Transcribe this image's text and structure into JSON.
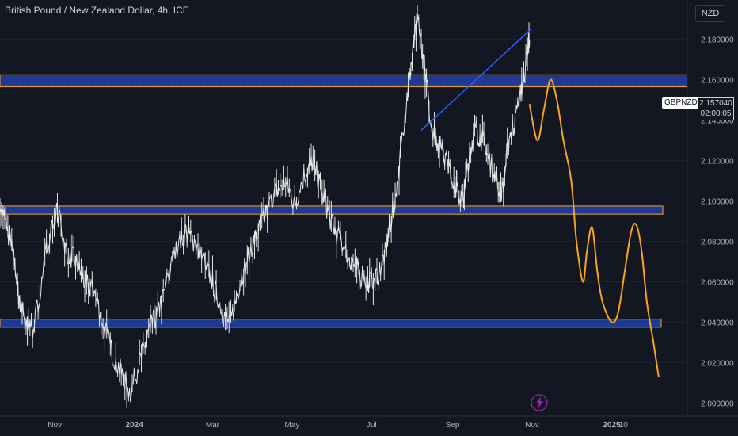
{
  "header": {
    "title": "British Pound / New Zealand Dollar, 4h, ICE"
  },
  "toolbar": {
    "currency_label": "NZD"
  },
  "last_price": {
    "symbol": "GBPNZD",
    "price": "2.157040",
    "countdown": "02:00:05"
  },
  "icons": {
    "event_marker": "lightning-icon"
  },
  "colors": {
    "background": "#131722",
    "grid": "#1e222d",
    "candles": "#e6e6e6",
    "zone_fill": "#1f3a93",
    "zone_border": "#f5a623",
    "projection": "#f7a51e",
    "trendline": "#2962ff",
    "axis_text": "#b2b5be",
    "event_marker": "#9c27b0"
  },
  "chart_data": {
    "type": "line",
    "symbol": "GBPNZD",
    "timeframe": "4h",
    "ylim": [
      1.9935,
      2.1995
    ],
    "y_ticks": [
      "2.000000",
      "2.020000",
      "2.040000",
      "2.060000",
      "2.080000",
      "2.100000",
      "2.120000",
      "2.140000",
      "2.160000",
      "2.180000"
    ],
    "x_ticks": [
      "Nov",
      "2024",
      "Mar",
      "May",
      "Jul",
      "Sep",
      "Nov",
      "2025",
      "10"
    ],
    "series": [
      {
        "role": "price",
        "x": [
          "2023-09-20",
          "2023-09-26",
          "2023-10-01",
          "2023-10-05",
          "2023-10-10",
          "2023-10-15",
          "2023-10-22",
          "2023-10-28",
          "2023-11-03",
          "2023-11-10",
          "2023-11-17",
          "2023-11-24",
          "2023-12-01",
          "2023-12-08",
          "2023-12-15",
          "2023-12-22",
          "2023-12-29",
          "2024-01-05",
          "2024-01-12",
          "2024-01-19",
          "2024-01-26",
          "2024-02-02",
          "2024-02-09",
          "2024-02-16",
          "2024-02-23",
          "2024-03-01",
          "2024-03-08",
          "2024-03-15",
          "2024-03-22",
          "2024-03-29",
          "2024-04-05",
          "2024-04-12",
          "2024-04-19",
          "2024-04-26",
          "2024-05-03",
          "2024-05-10",
          "2024-05-17",
          "2024-05-24",
          "2024-05-31",
          "2024-06-07",
          "2024-06-14",
          "2024-06-21",
          "2024-06-28",
          "2024-07-05",
          "2024-07-12",
          "2024-07-16",
          "2024-07-21",
          "2024-07-26",
          "2024-07-31",
          "2024-08-05",
          "2024-08-10",
          "2024-08-15",
          "2024-08-20",
          "2024-08-25",
          "2024-08-30",
          "2024-09-04",
          "2024-09-09",
          "2024-09-14",
          "2024-09-19",
          "2024-09-24",
          "2024-09-29",
          "2024-10-04",
          "2024-10-09",
          "2024-10-14",
          "2024-10-19",
          "2024-10-24",
          "2024-10-28",
          "2024-10-30"
        ],
        "values": [
          2.1,
          2.085,
          2.07,
          2.05,
          2.04,
          2.035,
          2.06,
          2.085,
          2.095,
          2.075,
          2.07,
          2.06,
          2.055,
          2.04,
          2.025,
          2.015,
          2.005,
          2.02,
          2.035,
          2.045,
          2.06,
          2.075,
          2.085,
          2.08,
          2.07,
          2.06,
          2.045,
          2.04,
          2.06,
          2.075,
          2.085,
          2.095,
          2.105,
          2.11,
          2.098,
          2.112,
          2.12,
          2.104,
          2.09,
          2.08,
          2.072,
          2.065,
          2.06,
          2.063,
          2.075,
          2.09,
          2.11,
          2.14,
          2.165,
          2.19,
          2.17,
          2.14,
          2.13,
          2.125,
          2.115,
          2.105,
          2.1,
          2.125,
          2.135,
          2.13,
          2.12,
          2.11,
          2.105,
          2.13,
          2.14,
          2.155,
          2.17,
          2.18
        ]
      },
      {
        "role": "projection",
        "x": [
          "2024-10-30",
          "2024-11-05",
          "2024-11-10",
          "2024-11-15",
          "2024-11-20",
          "2024-11-25",
          "2024-12-01",
          "2024-12-05",
          "2024-12-10",
          "2024-12-13",
          "2024-12-17",
          "2024-12-21",
          "2024-12-25",
          "2025-01-01",
          "2025-01-06",
          "2025-01-11",
          "2025-01-16",
          "2025-01-20",
          "2025-01-24",
          "2025-01-28",
          "2025-02-02",
          "2025-02-06"
        ],
        "values": [
          2.148,
          2.13,
          2.145,
          2.16,
          2.15,
          2.13,
          2.11,
          2.08,
          2.06,
          2.075,
          2.087,
          2.065,
          2.05,
          2.04,
          2.045,
          2.065,
          2.085,
          2.088,
          2.075,
          2.05,
          2.03,
          2.013
        ]
      },
      {
        "role": "trendline",
        "x": [
          "2024-08-08",
          "2024-10-31"
        ],
        "values": [
          2.135,
          2.185
        ]
      }
    ],
    "zones": [
      {
        "y0": 2.1565,
        "y1": 2.1625
      },
      {
        "y0": 2.0935,
        "y1": 2.0975
      },
      {
        "y0": 2.0375,
        "y1": 2.0415
      }
    ],
    "last_price_line": 2.15704,
    "grid": true
  }
}
